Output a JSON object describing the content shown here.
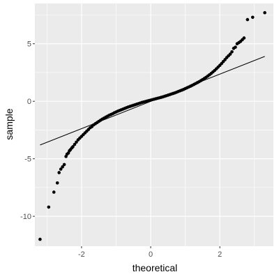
{
  "chart_data": {
    "type": "scatter",
    "subtype": "qq-plot",
    "title": "",
    "xlabel": "theoretical",
    "ylabel": "sample",
    "xlim": [
      -3.35,
      3.55
    ],
    "ylim": [
      -12.6,
      8.5
    ],
    "x_ticks": [
      -2,
      0,
      2
    ],
    "x_tick_labels": [
      "-2",
      "0",
      "2"
    ],
    "y_ticks": [
      -10,
      -5,
      0,
      5
    ],
    "y_tick_labels": [
      "-10",
      "-5",
      "0",
      "5"
    ],
    "x_minor_ticks": [
      -3,
      -1,
      1,
      3
    ],
    "y_minor_ticks": [
      -7.5,
      -2.5,
      2.5,
      7.5
    ],
    "grid": true,
    "background": "#ebebeb",
    "grid_color": "#ffffff",
    "point_color": "#000000",
    "line_color": "#000000",
    "reference_line": {
      "x": [
        -3.2,
        3.3
      ],
      "y": [
        -3.8,
        3.9
      ]
    },
    "points": {
      "x": [
        -3.2,
        -2.95,
        -2.8,
        -2.7,
        -2.65,
        -2.6,
        -2.55,
        -2.5,
        -2.45,
        -2.42,
        -2.38,
        -2.35,
        -2.32,
        -2.28,
        -2.25,
        -2.2,
        -2.15,
        -2.1,
        -2.05,
        -2.0,
        -1.95,
        -1.9,
        -1.85,
        -1.8,
        -1.75,
        -1.7,
        -1.65,
        -1.6,
        -1.55,
        -1.5,
        -1.45,
        -1.4,
        -1.35,
        -1.3,
        -1.25,
        -1.2,
        -1.15,
        -1.1,
        -1.05,
        -1.0,
        -0.95,
        -0.9,
        -0.85,
        -0.8,
        -0.75,
        -0.7,
        -0.65,
        -0.6,
        -0.55,
        -0.5,
        -0.45,
        -0.4,
        -0.35,
        -0.3,
        -0.25,
        -0.2,
        -0.15,
        -0.1,
        -0.05,
        0.0,
        0.05,
        0.1,
        0.15,
        0.2,
        0.25,
        0.3,
        0.35,
        0.4,
        0.45,
        0.5,
        0.55,
        0.6,
        0.65,
        0.7,
        0.75,
        0.8,
        0.85,
        0.9,
        0.95,
        1.0,
        1.05,
        1.1,
        1.15,
        1.2,
        1.25,
        1.3,
        1.35,
        1.4,
        1.45,
        1.5,
        1.55,
        1.6,
        1.65,
        1.7,
        1.75,
        1.8,
        1.85,
        1.9,
        1.95,
        2.0,
        2.05,
        2.1,
        2.15,
        2.2,
        2.25,
        2.3,
        2.35,
        2.4,
        2.45,
        2.5,
        2.55,
        2.6,
        2.65,
        2.7,
        2.8,
        2.95,
        3.3
      ],
      "y": [
        -12.0,
        -9.2,
        -7.9,
        -7.1,
        -6.2,
        -5.9,
        -5.7,
        -5.5,
        -4.8,
        -4.6,
        -4.5,
        -4.3,
        -4.2,
        -4.05,
        -3.95,
        -3.75,
        -3.55,
        -3.35,
        -3.2,
        -3.05,
        -2.9,
        -2.75,
        -2.6,
        -2.45,
        -2.3,
        -2.2,
        -2.05,
        -1.95,
        -1.85,
        -1.75,
        -1.65,
        -1.55,
        -1.47,
        -1.38,
        -1.3,
        -1.22,
        -1.15,
        -1.08,
        -1.0,
        -0.93,
        -0.86,
        -0.8,
        -0.74,
        -0.68,
        -0.62,
        -0.56,
        -0.5,
        -0.45,
        -0.4,
        -0.35,
        -0.3,
        -0.25,
        -0.2,
        -0.15,
        -0.1,
        -0.06,
        -0.02,
        0.02,
        0.06,
        0.1,
        0.14,
        0.18,
        0.22,
        0.26,
        0.3,
        0.34,
        0.38,
        0.43,
        0.48,
        0.53,
        0.58,
        0.63,
        0.68,
        0.73,
        0.79,
        0.85,
        0.91,
        0.97,
        1.03,
        1.1,
        1.17,
        1.24,
        1.31,
        1.38,
        1.46,
        1.54,
        1.62,
        1.7,
        1.79,
        1.88,
        1.98,
        2.08,
        2.19,
        2.3,
        2.42,
        2.55,
        2.68,
        2.82,
        2.97,
        3.12,
        3.28,
        3.45,
        3.62,
        3.8,
        3.95,
        4.1,
        4.3,
        4.6,
        4.7,
        5.0,
        5.1,
        5.2,
        5.35,
        5.5,
        7.1,
        7.3,
        7.7
      ]
    }
  }
}
